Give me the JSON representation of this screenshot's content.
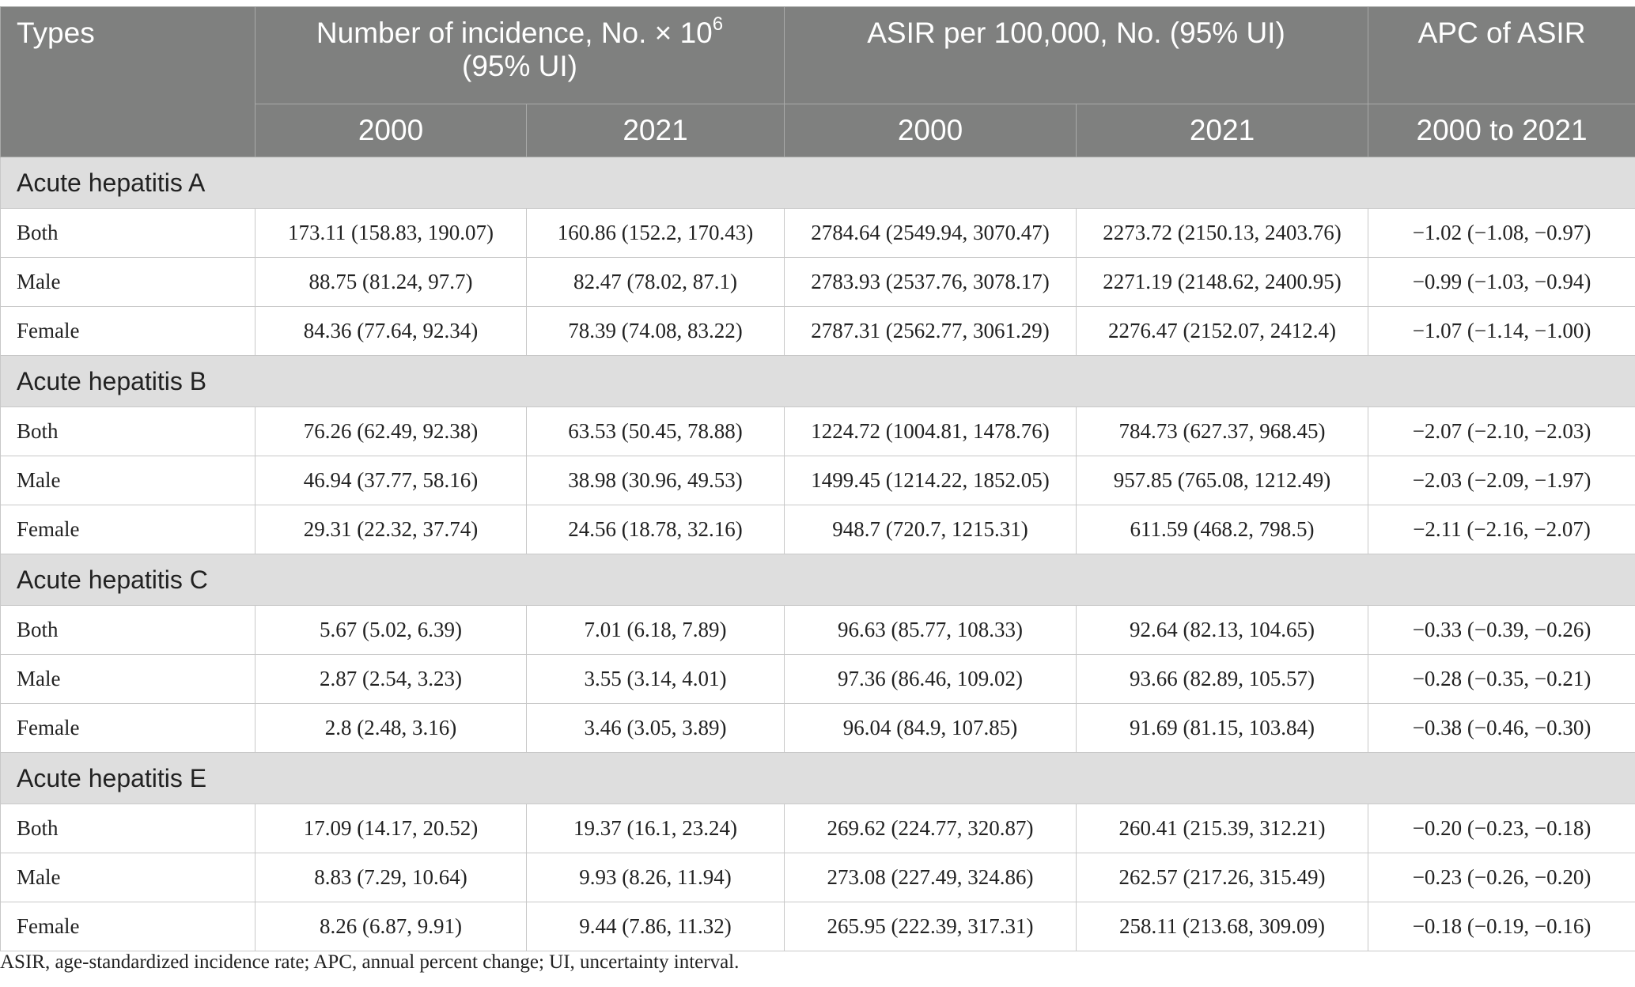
{
  "header": {
    "types": "Types",
    "incidence_line1": "Number of incidence, No. × 10",
    "incidence_sup": "6",
    "incidence_line2": "(95% UI)",
    "asir": "ASIR per 100,000, No. (95% UI)",
    "apc": "APC of ASIR",
    "year_a": "2000",
    "year_b": "2021",
    "year_c": "2000",
    "year_d": "2021",
    "apc_period": "2000 to 2021"
  },
  "groups": [
    {
      "title": "Acute hepatitis A",
      "rows": [
        [
          "Both",
          "173.11 (158.83, 190.07)",
          "160.86 (152.2, 170.43)",
          "2784.64 (2549.94, 3070.47)",
          "2273.72 (2150.13, 2403.76)",
          "−1.02 (−1.08, −0.97)"
        ],
        [
          "Male",
          "88.75 (81.24, 97.7)",
          "82.47 (78.02, 87.1)",
          "2783.93 (2537.76, 3078.17)",
          "2271.19 (2148.62, 2400.95)",
          "−0.99 (−1.03, −0.94)"
        ],
        [
          "Female",
          "84.36 (77.64, 92.34)",
          "78.39 (74.08, 83.22)",
          "2787.31 (2562.77, 3061.29)",
          "2276.47 (2152.07, 2412.4)",
          "−1.07 (−1.14, −1.00)"
        ]
      ]
    },
    {
      "title": "Acute hepatitis B",
      "rows": [
        [
          "Both",
          "76.26 (62.49, 92.38)",
          "63.53 (50.45, 78.88)",
          "1224.72 (1004.81, 1478.76)",
          "784.73 (627.37, 968.45)",
          "−2.07 (−2.10, −2.03)"
        ],
        [
          "Male",
          "46.94 (37.77, 58.16)",
          "38.98 (30.96, 49.53)",
          "1499.45 (1214.22, 1852.05)",
          "957.85 (765.08, 1212.49)",
          "−2.03 (−2.09, −1.97)"
        ],
        [
          "Female",
          "29.31 (22.32, 37.74)",
          "24.56 (18.78, 32.16)",
          "948.7 (720.7, 1215.31)",
          "611.59 (468.2, 798.5)",
          "−2.11 (−2.16, −2.07)"
        ]
      ]
    },
    {
      "title": "Acute hepatitis C",
      "rows": [
        [
          "Both",
          "5.67 (5.02, 6.39)",
          "7.01 (6.18, 7.89)",
          "96.63 (85.77, 108.33)",
          "92.64 (82.13, 104.65)",
          "−0.33 (−0.39, −0.26)"
        ],
        [
          "Male",
          "2.87 (2.54, 3.23)",
          "3.55 (3.14, 4.01)",
          "97.36 (86.46, 109.02)",
          "93.66 (82.89, 105.57)",
          "−0.28 (−0.35, −0.21)"
        ],
        [
          "Female",
          "2.8 (2.48, 3.16)",
          "3.46 (3.05, 3.89)",
          "96.04 (84.9, 107.85)",
          "91.69 (81.15, 103.84)",
          "−0.38 (−0.46, −0.30)"
        ]
      ]
    },
    {
      "title": "Acute hepatitis E",
      "rows": [
        [
          "Both",
          "17.09 (14.17, 20.52)",
          "19.37 (16.1, 23.24)",
          "269.62 (224.77, 320.87)",
          "260.41 (215.39, 312.21)",
          "−0.20 (−0.23, −0.18)"
        ],
        [
          "Male",
          "8.83 (7.29, 10.64)",
          "9.93 (8.26, 11.94)",
          "273.08 (227.49, 324.86)",
          "262.57 (217.26, 315.49)",
          "−0.23 (−0.26, −0.20)"
        ],
        [
          "Female",
          "8.26 (6.87, 9.91)",
          "9.44 (7.86, 11.32)",
          "265.95 (222.39, 317.31)",
          "258.11 (213.68, 309.09)",
          "−0.18 (−0.19, −0.16)"
        ]
      ]
    }
  ],
  "footnote": "ASIR, age-standardized incidence rate; APC, annual percent change; UI, uncertainty interval."
}
